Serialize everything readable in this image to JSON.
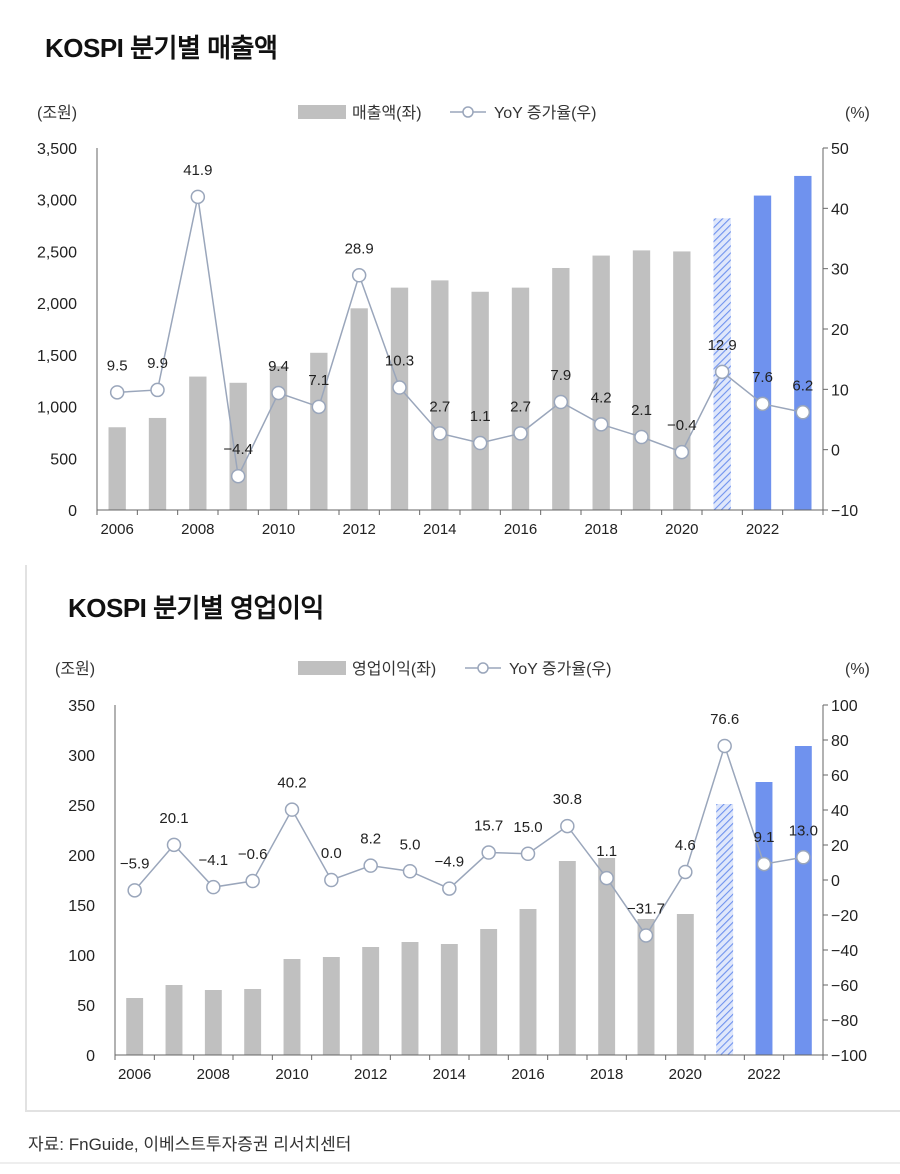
{
  "source": "자료: FnGuide, 이베스트투자증권 리서치센터",
  "colors": {
    "bar": "#c0c0c0",
    "forecast": "#6f92ee",
    "hatch": "#7fa0ea",
    "line": "#9aa6bb",
    "marker_fill": "#ffffff"
  },
  "chart_data": [
    {
      "type": "bar+line",
      "title": "KOSPI 분기별 매출액",
      "left_unit": "(조원)",
      "right_unit": "(%)",
      "legend": {
        "bar": "매출액(좌)",
        "line": "YoY 증가율(우)",
        "placement": "top-center"
      },
      "categories": [
        2006,
        2007,
        2008,
        2009,
        2010,
        2011,
        2012,
        2013,
        2014,
        2015,
        2016,
        2017,
        2018,
        2019,
        2020,
        2021,
        2022,
        2023
      ],
      "x_tick_labels": [
        "2006",
        "2008",
        "2010",
        "2012",
        "2014",
        "2016",
        "2018",
        "2020",
        "2022"
      ],
      "bar_values": [
        800,
        890,
        1290,
        1230,
        1390,
        1520,
        1950,
        2150,
        2220,
        2110,
        2150,
        2340,
        2460,
        2510,
        2500,
        2820,
        3040,
        3230
      ],
      "bar_styles": [
        "actual",
        "actual",
        "actual",
        "actual",
        "actual",
        "actual",
        "actual",
        "actual",
        "actual",
        "actual",
        "actual",
        "actual",
        "actual",
        "actual",
        "actual",
        "hatched",
        "forecast",
        "forecast"
      ],
      "line_values": [
        9.5,
        9.9,
        41.9,
        -4.4,
        9.4,
        7.1,
        28.9,
        10.3,
        2.7,
        1.1,
        2.7,
        7.9,
        4.2,
        2.1,
        -0.4,
        12.9,
        7.6,
        6.2
      ],
      "line_labels": [
        "9.5",
        "9.9",
        "41.9",
        "−4.4",
        "9.4",
        "7.1",
        "28.9",
        "10.3",
        "2.7",
        "1.1",
        "2.7",
        "7.9",
        "4.2",
        "2.1",
        "−0.4",
        "12.9",
        "7.6",
        "6.2"
      ],
      "ylim_left": [
        0,
        3500
      ],
      "yticks_left": [
        "0",
        "500",
        "1,000",
        "1,500",
        "2,000",
        "2,500",
        "3,000",
        "3,500"
      ],
      "ylim_right": [
        -10,
        50
      ],
      "yticks_right": [
        "−10",
        "0",
        "10",
        "20",
        "30",
        "40",
        "50"
      ],
      "grid": false
    },
    {
      "type": "bar+line",
      "title": "KOSPI 분기별 영업이익",
      "left_unit": "(조원)",
      "right_unit": "(%)",
      "legend": {
        "bar": "영업이익(좌)",
        "line": "YoY 증가율(우)",
        "placement": "top-center"
      },
      "categories": [
        2006,
        2007,
        2008,
        2009,
        2010,
        2011,
        2012,
        2013,
        2014,
        2015,
        2016,
        2017,
        2018,
        2019,
        2020,
        2021,
        2022,
        2023
      ],
      "x_tick_labels": [
        "2006",
        "2008",
        "2010",
        "2012",
        "2014",
        "2016",
        "2018",
        "2020",
        "2022"
      ],
      "bar_values": [
        57,
        70,
        65,
        66,
        96,
        98,
        108,
        113,
        111,
        126,
        146,
        194,
        197,
        136,
        141,
        251,
        273,
        309
      ],
      "bar_styles": [
        "actual",
        "actual",
        "actual",
        "actual",
        "actual",
        "actual",
        "actual",
        "actual",
        "actual",
        "actual",
        "actual",
        "actual",
        "actual",
        "actual",
        "actual",
        "hatched",
        "forecast",
        "forecast"
      ],
      "line_values": [
        -5.9,
        20.1,
        -4.1,
        -0.6,
        40.2,
        0.0,
        8.2,
        5.0,
        -4.9,
        15.7,
        15.0,
        30.8,
        1.1,
        -31.7,
        4.6,
        76.6,
        9.1,
        13.0
      ],
      "line_labels": [
        "−5.9",
        "20.1",
        "−4.1",
        "−0.6",
        "40.2",
        "0.0",
        "8.2",
        "5.0",
        "−4.9",
        "15.7",
        "15.0",
        "30.8",
        "1.1",
        "−31.7",
        "4.6",
        "76.6",
        "9.1",
        "13.0"
      ],
      "ylim_left": [
        0,
        350
      ],
      "yticks_left": [
        "0",
        "50",
        "100",
        "150",
        "200",
        "250",
        "300",
        "350"
      ],
      "ylim_right": [
        -100,
        100
      ],
      "yticks_right": [
        "−100",
        "−80",
        "−60",
        "−40",
        "−20",
        "0",
        "20",
        "40",
        "60",
        "80",
        "100"
      ],
      "grid": false
    }
  ]
}
